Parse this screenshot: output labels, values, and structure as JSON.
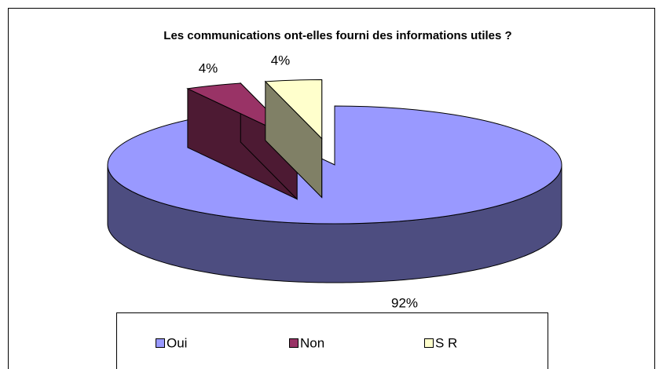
{
  "chart_data": {
    "type": "pie3d",
    "title": "Les communications ont-elles fourni des informations utiles ?",
    "categories": [
      "Oui",
      "Non",
      "S R"
    ],
    "values": [
      92,
      4,
      4
    ],
    "value_labels": [
      "92%",
      "4%",
      "4%"
    ],
    "colors": [
      "#9999ff",
      "#993366",
      "#ffffcc"
    ],
    "exploded": [
      false,
      true,
      true
    ],
    "legend": "bottom"
  }
}
